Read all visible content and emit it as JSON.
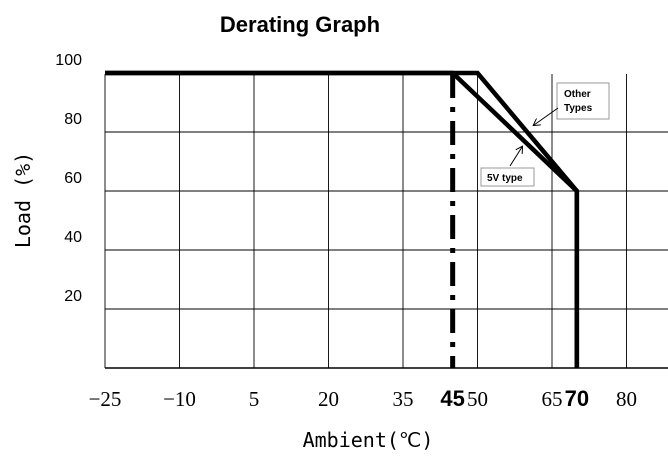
{
  "chart_data": {
    "type": "line",
    "title": "Derating Graph",
    "xlabel": "Ambient(℃)",
    "ylabel": "Load (%)",
    "x_ticks": [
      "-25",
      "-10",
      "5",
      "20",
      "35",
      "45",
      "50",
      "65",
      "70",
      "80"
    ],
    "y_ticks": [
      "20",
      "40",
      "60",
      "80",
      "100"
    ],
    "xlim": [
      -25,
      85
    ],
    "ylim": [
      0,
      105
    ],
    "grid": true,
    "series": [
      {
        "name": "Other Types",
        "x": [
          -25,
          50,
          70,
          70
        ],
        "y": [
          100,
          100,
          60,
          0
        ]
      },
      {
        "name": "5V type",
        "x": [
          -25,
          45,
          70,
          70
        ],
        "y": [
          100,
          100,
          60,
          0
        ]
      }
    ],
    "reference_line": {
      "x": 45,
      "style": "dash-dot"
    },
    "annotations": [
      {
        "text": "Other Types",
        "lines": [
          "Other",
          "Types"
        ]
      },
      {
        "text": "5V type",
        "lines": [
          "5V type"
        ]
      }
    ]
  }
}
